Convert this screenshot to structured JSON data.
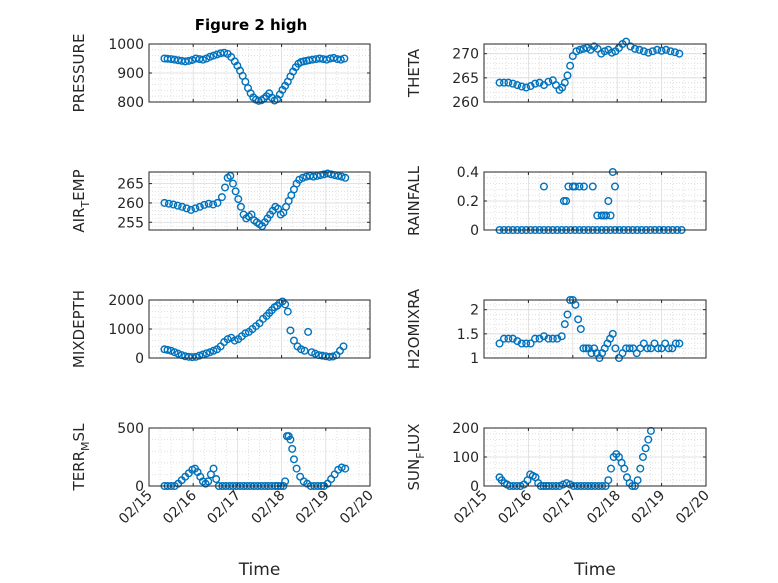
{
  "figure": {
    "title": "Figure 2 high"
  },
  "chart_data": [
    {
      "type": "scatter",
      "ylabel_parts": [
        {
          "t": "PRESSURE"
        }
      ],
      "xlim": [
        0,
        5
      ],
      "ylim": [
        800,
        1000
      ],
      "yticks": [
        800,
        900,
        1000
      ],
      "xticks": [
        0,
        1,
        2,
        3,
        4,
        5
      ],
      "xticklabels": [],
      "grid": true,
      "minor_grid": true,
      "x": [
        0.35,
        0.42,
        0.5,
        0.58,
        0.66,
        0.74,
        0.82,
        0.9,
        0.98,
        1.06,
        1.14,
        1.22,
        1.3,
        1.38,
        1.46,
        1.54,
        1.62,
        1.7,
        1.78,
        1.86,
        1.94,
        2.0,
        2.06,
        2.12,
        2.18,
        2.24,
        2.3,
        2.36,
        2.42,
        2.48,
        2.54,
        2.6,
        2.66,
        2.72,
        2.78,
        2.84,
        2.9,
        2.96,
        3.02,
        3.08,
        3.14,
        3.2,
        3.26,
        3.32,
        3.38,
        3.44,
        3.5,
        3.56,
        3.62,
        3.7,
        3.78,
        3.86,
        3.94,
        4.02,
        4.1,
        4.18,
        4.26,
        4.34,
        4.42
      ],
      "y": [
        950,
        949,
        948,
        946,
        944,
        942,
        940,
        942,
        945,
        950,
        948,
        946,
        950,
        956,
        960,
        964,
        968,
        970,
        966,
        955,
        940,
        925,
        908,
        890,
        870,
        848,
        830,
        816,
        808,
        804,
        806,
        812,
        820,
        830,
        815,
        805,
        810,
        826,
        842,
        856,
        870,
        888,
        905,
        920,
        932,
        938,
        940,
        942,
        944,
        946,
        948,
        950,
        948,
        946,
        950,
        952,
        948,
        946,
        950
      ],
      "color": "#0072BD"
    },
    {
      "type": "scatter",
      "ylabel_parts": [
        {
          "t": "THETA"
        }
      ],
      "xlim": [
        0,
        5
      ],
      "ylim": [
        260,
        272
      ],
      "yticks": [
        260,
        265,
        270
      ],
      "xticks": [
        0,
        1,
        2,
        3,
        4,
        5
      ],
      "xticklabels": [],
      "grid": true,
      "minor_grid": true,
      "x": [
        0.35,
        0.45,
        0.55,
        0.65,
        0.75,
        0.85,
        0.95,
        1.05,
        1.15,
        1.25,
        1.35,
        1.45,
        1.55,
        1.62,
        1.7,
        1.76,
        1.82,
        1.88,
        1.94,
        2.0,
        2.08,
        2.16,
        2.24,
        2.32,
        2.4,
        2.48,
        2.56,
        2.64,
        2.72,
        2.8,
        2.88,
        2.96,
        3.04,
        3.12,
        3.2,
        3.3,
        3.4,
        3.5,
        3.6,
        3.7,
        3.8,
        3.9,
        4.0,
        4.1,
        4.2,
        4.3,
        4.4
      ],
      "y": [
        264,
        264,
        264,
        263.8,
        263.5,
        263.2,
        263,
        263.3,
        263.8,
        264,
        263.5,
        264.2,
        264.5,
        263.5,
        262.5,
        263,
        264,
        265.5,
        267.5,
        269.5,
        270.5,
        270.8,
        271,
        271.2,
        270.8,
        271.5,
        271,
        270,
        270.5,
        270.8,
        270.2,
        270.5,
        271.2,
        272,
        272.5,
        271.5,
        271,
        270.8,
        270.5,
        270.2,
        270.5,
        270.8,
        270.6,
        270.8,
        270.5,
        270.3,
        270
      ],
      "color": "#0072BD"
    },
    {
      "type": "scatter",
      "ylabel_parts": [
        {
          "t": "AIR"
        },
        {
          "t": "T",
          "sub": true
        },
        {
          "t": "EMP"
        }
      ],
      "xlim": [
        0,
        5
      ],
      "ylim": [
        253,
        268
      ],
      "yticks": [
        255,
        260,
        265
      ],
      "xticks": [
        0,
        1,
        2,
        3,
        4,
        5
      ],
      "xticklabels": [],
      "grid": true,
      "minor_grid": true,
      "x": [
        0.35,
        0.45,
        0.55,
        0.65,
        0.75,
        0.85,
        0.95,
        1.05,
        1.15,
        1.25,
        1.35,
        1.45,
        1.55,
        1.65,
        1.72,
        1.78,
        1.84,
        1.9,
        1.96,
        2.02,
        2.08,
        2.14,
        2.2,
        2.26,
        2.32,
        2.38,
        2.44,
        2.5,
        2.56,
        2.62,
        2.68,
        2.74,
        2.8,
        2.86,
        2.92,
        2.98,
        3.04,
        3.1,
        3.16,
        3.22,
        3.28,
        3.34,
        3.4,
        3.48,
        3.56,
        3.64,
        3.72,
        3.8,
        3.88,
        3.96,
        4.04,
        4.12,
        4.2,
        4.28,
        4.36,
        4.44
      ],
      "y": [
        260,
        259.8,
        259.6,
        259.3,
        259,
        258.6,
        258.2,
        258.6,
        259,
        259.5,
        259.8,
        259.6,
        260,
        261.5,
        264,
        266.5,
        267,
        265,
        263,
        261,
        259,
        257,
        256,
        256.5,
        257,
        255.5,
        255,
        254.5,
        254,
        255,
        256,
        257,
        258,
        259,
        258.5,
        257,
        257.5,
        259,
        260.5,
        262,
        263.5,
        265,
        266,
        266.5,
        266.8,
        267,
        266.8,
        267,
        267.2,
        267.4,
        267.6,
        267.4,
        267.2,
        267,
        266.8,
        266.5
      ],
      "color": "#0072BD"
    },
    {
      "type": "scatter",
      "ylabel_parts": [
        {
          "t": "RAINFALL"
        }
      ],
      "xlim": [
        0,
        5
      ],
      "ylim": [
        0,
        0.4
      ],
      "yticks": [
        0,
        0.2,
        0.4
      ],
      "xticks": [
        0,
        1,
        2,
        3,
        4,
        5
      ],
      "xticklabels": [],
      "grid": true,
      "minor_grid": true,
      "x": [
        0.35,
        0.45,
        0.55,
        0.65,
        0.75,
        0.85,
        0.95,
        1.05,
        1.15,
        1.25,
        1.35,
        1.45,
        1.55,
        1.65,
        1.75,
        1.85,
        1.95,
        2.05,
        2.15,
        2.25,
        2.35,
        2.45,
        2.55,
        2.65,
        2.75,
        2.85,
        2.95,
        3.05,
        3.15,
        3.25,
        3.35,
        3.45,
        3.55,
        3.65,
        3.75,
        3.85,
        3.95,
        4.05,
        4.15,
        4.25,
        4.35,
        4.45,
        1.35,
        1.8,
        1.85,
        1.9,
        2.0,
        2.05,
        2.15,
        2.25,
        2.45,
        2.55,
        2.65,
        2.7,
        2.75,
        2.8,
        2.85,
        2.9,
        2.95
      ],
      "y": [
        0,
        0,
        0,
        0,
        0,
        0,
        0,
        0,
        0,
        0,
        0,
        0,
        0,
        0,
        0,
        0,
        0,
        0,
        0,
        0,
        0,
        0,
        0,
        0,
        0,
        0,
        0,
        0,
        0,
        0,
        0,
        0,
        0,
        0,
        0,
        0,
        0,
        0,
        0,
        0,
        0,
        0,
        0.3,
        0.2,
        0.2,
        0.3,
        0.3,
        0.3,
        0.3,
        0.3,
        0.3,
        0.1,
        0.1,
        0.1,
        0.1,
        0.2,
        0.1,
        0.4,
        0.3
      ],
      "color": "#0072BD"
    },
    {
      "type": "scatter",
      "ylabel_parts": [
        {
          "t": "MIXDEPTH"
        }
      ],
      "xlim": [
        0,
        5
      ],
      "ylim": [
        0,
        2000
      ],
      "yticks": [
        0,
        1000,
        2000
      ],
      "xticks": [
        0,
        1,
        2,
        3,
        4,
        5
      ],
      "xticklabels": [],
      "grid": true,
      "minor_grid": true,
      "x": [
        0.35,
        0.42,
        0.5,
        0.58,
        0.66,
        0.74,
        0.82,
        0.9,
        0.98,
        1.06,
        1.14,
        1.22,
        1.3,
        1.38,
        1.46,
        1.54,
        1.62,
        1.7,
        1.78,
        1.86,
        1.94,
        2.02,
        2.1,
        2.18,
        2.26,
        2.34,
        2.42,
        2.5,
        2.58,
        2.66,
        2.72,
        2.78,
        2.84,
        2.9,
        2.96,
        3.02,
        3.08,
        3.14,
        3.2,
        3.28,
        3.36,
        3.44,
        3.52,
        3.6,
        3.68,
        3.76,
        3.84,
        3.92,
        4.0,
        4.08,
        4.16,
        4.24,
        4.32,
        4.4
      ],
      "y": [
        300,
        280,
        250,
        200,
        150,
        100,
        60,
        40,
        30,
        40,
        80,
        120,
        160,
        200,
        250,
        300,
        400,
        550,
        650,
        700,
        600,
        650,
        750,
        850,
        900,
        1000,
        1100,
        1200,
        1350,
        1450,
        1550,
        1650,
        1750,
        1800,
        1900,
        1950,
        1850,
        1600,
        950,
        600,
        400,
        300,
        250,
        900,
        200,
        150,
        100,
        80,
        60,
        40,
        50,
        100,
        250,
        400
      ],
      "color": "#0072BD"
    },
    {
      "type": "scatter",
      "ylabel_parts": [
        {
          "t": "H2OMIXRA"
        }
      ],
      "xlim": [
        0,
        5
      ],
      "ylim": [
        1,
        2.2
      ],
      "yticks": [
        1,
        1.5,
        2
      ],
      "xticks": [
        0,
        1,
        2,
        3,
        4,
        5
      ],
      "xticklabels": [],
      "grid": true,
      "minor_grid": true,
      "x": [
        0.35,
        0.45,
        0.55,
        0.65,
        0.75,
        0.85,
        0.95,
        1.05,
        1.15,
        1.25,
        1.35,
        1.45,
        1.55,
        1.65,
        1.75,
        1.82,
        1.88,
        1.94,
        2.0,
        2.06,
        2.12,
        2.18,
        2.24,
        2.3,
        2.36,
        2.42,
        2.48,
        2.54,
        2.6,
        2.66,
        2.72,
        2.78,
        2.84,
        2.9,
        2.96,
        3.04,
        3.12,
        3.2,
        3.28,
        3.36,
        3.44,
        3.52,
        3.6,
        3.68,
        3.76,
        3.84,
        3.92,
        4.0,
        4.08,
        4.16,
        4.24,
        4.32,
        4.4
      ],
      "y": [
        1.3,
        1.4,
        1.4,
        1.4,
        1.35,
        1.3,
        1.3,
        1.3,
        1.4,
        1.4,
        1.45,
        1.4,
        1.4,
        1.4,
        1.45,
        1.7,
        1.9,
        2.2,
        2.2,
        2.1,
        1.8,
        1.6,
        1.2,
        1.2,
        1.2,
        1.1,
        1.2,
        1.1,
        1.0,
        1.1,
        1.2,
        1.3,
        1.4,
        1.5,
        1.2,
        1.0,
        1.1,
        1.2,
        1.2,
        1.2,
        1.1,
        1.2,
        1.3,
        1.2,
        1.2,
        1.3,
        1.2,
        1.2,
        1.3,
        1.2,
        1.2,
        1.3,
        1.3
      ],
      "color": "#0072BD"
    },
    {
      "type": "scatter",
      "ylabel_parts": [
        {
          "t": "TERR"
        },
        {
          "t": "M",
          "sub": true
        },
        {
          "t": "SL"
        }
      ],
      "xlabel": "Time",
      "xlim": [
        0,
        5
      ],
      "ylim": [
        0,
        500
      ],
      "yticks": [
        0,
        500
      ],
      "xticks": [
        0,
        1,
        2,
        3,
        4,
        5
      ],
      "xticklabels": [
        "02/15",
        "02/16",
        "02/17",
        "02/18",
        "02/19",
        "02/20"
      ],
      "grid": true,
      "minor_grid": true,
      "x": [
        0.35,
        0.42,
        0.5,
        0.58,
        0.66,
        0.74,
        0.82,
        0.9,
        0.98,
        1.04,
        1.1,
        1.16,
        1.22,
        1.28,
        1.34,
        1.4,
        1.46,
        1.52,
        1.58,
        1.66,
        1.74,
        1.82,
        1.9,
        1.98,
        2.06,
        2.14,
        2.22,
        2.3,
        2.38,
        2.46,
        2.54,
        2.62,
        2.7,
        2.78,
        2.86,
        2.92,
        2.98,
        3.04,
        3.08,
        3.12,
        3.16,
        3.2,
        3.24,
        3.28,
        3.34,
        3.42,
        3.5,
        3.58,
        3.66,
        3.74,
        3.82,
        3.9,
        3.96,
        4.04,
        4.12,
        4.2,
        4.28,
        4.36,
        4.44
      ],
      "y": [
        0,
        0,
        0,
        0,
        20,
        50,
        80,
        110,
        140,
        150,
        120,
        80,
        40,
        20,
        40,
        100,
        150,
        60,
        0,
        0,
        0,
        0,
        0,
        0,
        0,
        0,
        0,
        0,
        0,
        0,
        0,
        0,
        0,
        0,
        0,
        0,
        0,
        0,
        40,
        430,
        430,
        400,
        320,
        230,
        150,
        80,
        40,
        20,
        0,
        0,
        0,
        0,
        0,
        20,
        60,
        100,
        140,
        160,
        150
      ],
      "color": "#0072BD"
    },
    {
      "type": "scatter",
      "ylabel_parts": [
        {
          "t": "SUN"
        },
        {
          "t": "F",
          "sub": true
        },
        {
          "t": "LUX"
        }
      ],
      "xlabel": "Time",
      "xlim": [
        0,
        5
      ],
      "ylim": [
        0,
        200
      ],
      "yticks": [
        0,
        100,
        200
      ],
      "xticks": [
        0,
        1,
        2,
        3,
        4,
        5
      ],
      "xticklabels": [
        "02/15",
        "02/16",
        "02/17",
        "02/18",
        "02/19",
        "02/20"
      ],
      "grid": true,
      "minor_grid": true,
      "x": [
        0.35,
        0.4,
        0.46,
        0.52,
        0.58,
        0.66,
        0.74,
        0.82,
        0.9,
        0.98,
        1.04,
        1.1,
        1.16,
        1.22,
        1.28,
        1.34,
        1.4,
        1.46,
        1.54,
        1.62,
        1.7,
        1.78,
        1.86,
        1.94,
        2.02,
        2.1,
        2.18,
        2.26,
        2.34,
        2.42,
        2.5,
        2.58,
        2.66,
        2.74,
        2.8,
        2.86,
        2.92,
        2.98,
        3.04,
        3.1,
        3.16,
        3.22,
        3.28,
        3.34,
        3.4,
        3.46,
        3.52,
        3.58,
        3.64,
        3.7,
        3.76
      ],
      "y": [
        30,
        20,
        10,
        5,
        0,
        0,
        0,
        0,
        5,
        20,
        40,
        35,
        30,
        10,
        0,
        0,
        0,
        0,
        0,
        0,
        0,
        5,
        10,
        5,
        0,
        0,
        0,
        0,
        0,
        0,
        0,
        0,
        0,
        0,
        20,
        60,
        100,
        110,
        100,
        80,
        60,
        30,
        10,
        0,
        0,
        20,
        60,
        100,
        130,
        160,
        190
      ],
      "color": "#0072BD"
    }
  ]
}
